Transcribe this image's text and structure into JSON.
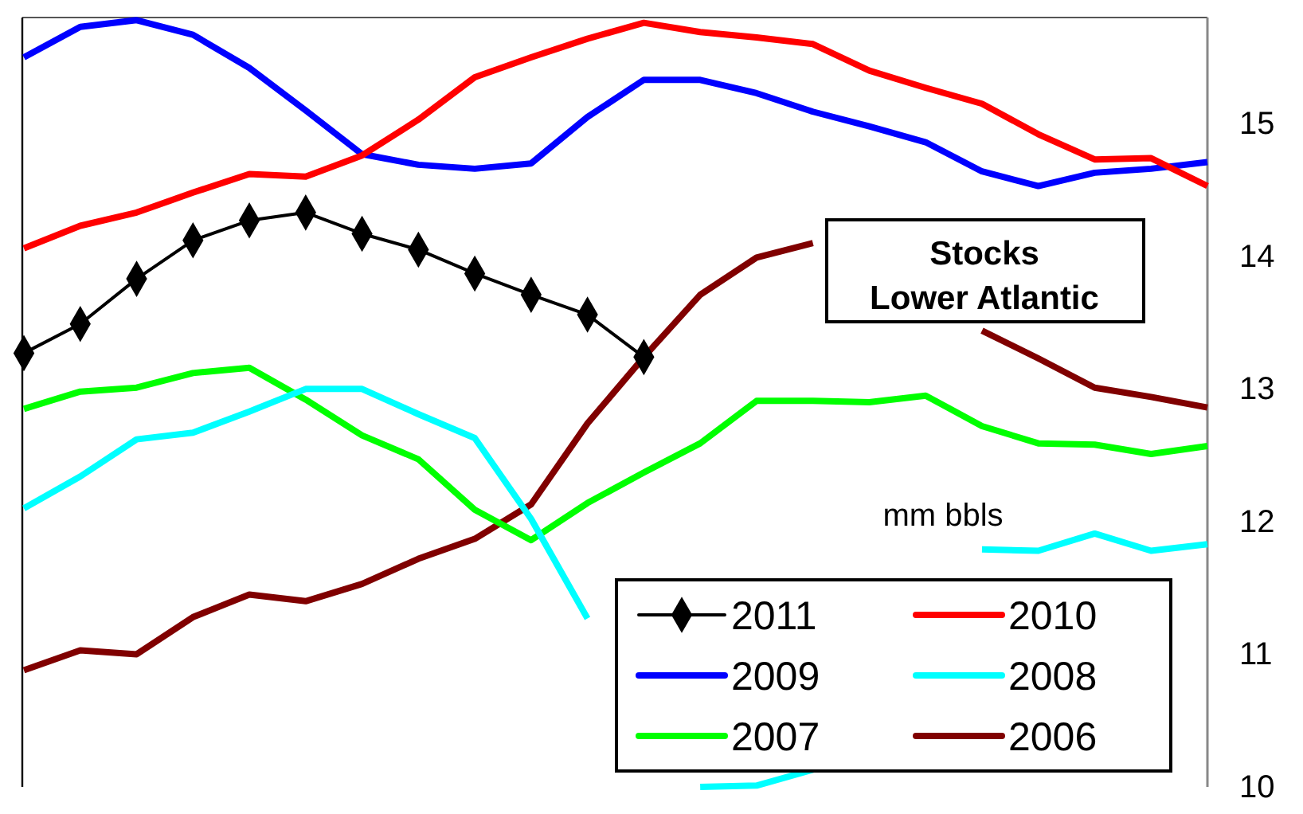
{
  "chart_data": {
    "type": "line",
    "title": "Stocks",
    "subtitle": "Lower Atlantic",
    "ylabel": "mm bbls",
    "categories": [
      null,
      null,
      null,
      null,
      null,
      null,
      null,
      null,
      null,
      null,
      null,
      null,
      null,
      null,
      null,
      null,
      null,
      null,
      null,
      null,
      null,
      null
    ],
    "ylim": [
      10,
      15.8
    ],
    "yticks": [
      10,
      11,
      12,
      13,
      14,
      15
    ],
    "grid": false,
    "legend": "bottom right",
    "series": [
      {
        "name": "2011",
        "color": "#000000",
        "marker": "diamond",
        "values": [
          13.27,
          13.49,
          13.83,
          14.12,
          14.27,
          14.33,
          14.17,
          14.05,
          13.87,
          13.71,
          13.56,
          13.24,
          null,
          null,
          null,
          null,
          null,
          null,
          null,
          null,
          null,
          null
        ]
      },
      {
        "name": "2010",
        "color": "#ff0000",
        "values": [
          14.06,
          14.23,
          14.33,
          14.48,
          14.62,
          14.6,
          14.76,
          15.03,
          15.35,
          15.5,
          15.64,
          15.76,
          15.69,
          15.65,
          15.6,
          15.4,
          15.27,
          15.15,
          14.92,
          14.73,
          14.74,
          14.53
        ]
      },
      {
        "name": "2009",
        "color": "#0000ff",
        "values": [
          15.5,
          15.73,
          15.78,
          15.67,
          15.42,
          15.1,
          14.77,
          14.69,
          14.66,
          14.7,
          15.05,
          15.33,
          15.33,
          15.23,
          15.09,
          14.98,
          14.86,
          14.64,
          14.53,
          14.63,
          14.66,
          14.71
        ]
      },
      {
        "name": "2008",
        "color": "#00ffff",
        "values": [
          12.1,
          12.34,
          12.62,
          12.67,
          12.83,
          13,
          13,
          12.81,
          12.63,
          12.02,
          11.27,
          null,
          10,
          10.01,
          10.13,
          null,
          null,
          11.79,
          11.78,
          11.91,
          11.78,
          11.83
        ]
      },
      {
        "name": "2007",
        "color": "#00ff00",
        "values": [
          12.85,
          12.98,
          13.01,
          13.12,
          13.16,
          12.92,
          12.65,
          12.47,
          12.09,
          11.86,
          12.14,
          12.37,
          12.59,
          12.91,
          12.91,
          12.9,
          12.95,
          12.72,
          12.59,
          12.58,
          12.51,
          12.57
        ]
      },
      {
        "name": "2006",
        "color": "#800000",
        "values": [
          10.88,
          11.03,
          11,
          11.28,
          11.45,
          11.4,
          11.53,
          11.72,
          11.87,
          12.13,
          12.74,
          13.24,
          13.71,
          13.99,
          14.1,
          null,
          null,
          13.44,
          13.23,
          13.01,
          12.94,
          12.86
        ]
      }
    ]
  }
}
